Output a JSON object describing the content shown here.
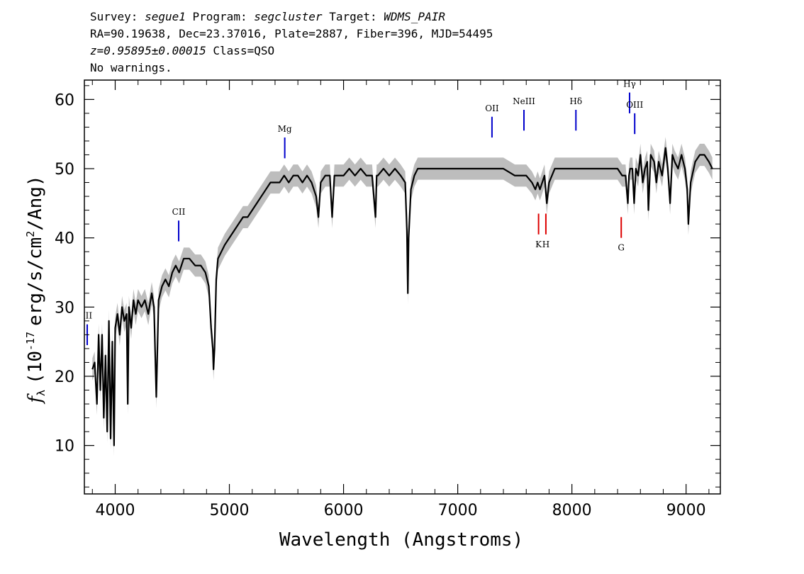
{
  "header": {
    "survey_label": "Survey:",
    "survey": "segue1",
    "program_label": "Program:",
    "program": "segcluster",
    "target_label": "Target:",
    "target": "WDMS_PAIR",
    "line2": "RA=90.19638, Dec=23.37016, Plate=2887, Fiber=396, MJD=54495",
    "redshift": "z=0.95895±0.00015",
    "class": "Class=QSO",
    "warnings": "No warnings."
  },
  "colors": {
    "flux": "#000000",
    "error_band": "#bdbdbd",
    "emission_marker": "#0000cc",
    "absorption_marker": "#dd0000"
  },
  "chart_data": {
    "type": "line",
    "xlabel": "Wavelength (Angstroms)",
    "ylabel_parts": {
      "symbol": "f",
      "sub": "λ",
      "pre": "(10",
      "exp": "-17",
      "mid": "erg/s/cm",
      "exp2": "2",
      "post": "/Ang)"
    },
    "xlim": [
      3730,
      9300
    ],
    "ylim": [
      3,
      62.8
    ],
    "xticks": [
      4000,
      5000,
      6000,
      7000,
      8000,
      9000
    ],
    "yticks": [
      10,
      20,
      30,
      40,
      50,
      60
    ],
    "grid": false,
    "series": [
      {
        "x": [
          3800,
          3820,
          3840,
          3855,
          3870,
          3885,
          3900,
          3915,
          3930,
          3945,
          3960,
          3975,
          3990,
          4000,
          4020,
          4040,
          4060,
          4080,
          4100,
          4110,
          4120,
          4140,
          4160,
          4180,
          4200,
          4230,
          4260,
          4290,
          4320,
          4340,
          4360,
          4380,
          4410,
          4440,
          4470,
          4500,
          4530,
          4560,
          4600,
          4650,
          4700,
          4750,
          4790,
          4820,
          4840,
          4855,
          4861,
          4870,
          4885,
          4900,
          4930,
          4960,
          5000,
          5040,
          5080,
          5120,
          5160,
          5200,
          5240,
          5280,
          5320,
          5360,
          5400,
          5440,
          5480,
          5520,
          5560,
          5600,
          5640,
          5680,
          5720,
          5760,
          5780,
          5800,
          5840,
          5880,
          5900,
          5920,
          5960,
          6000,
          6050,
          6100,
          6150,
          6200,
          6250,
          6280,
          6290,
          6300,
          6350,
          6400,
          6450,
          6500,
          6540,
          6555,
          6563,
          6570,
          6590,
          6620,
          6650,
          6700,
          6800,
          6900,
          7000,
          7100,
          7200,
          7300,
          7400,
          7500,
          7600,
          7650,
          7680,
          7700,
          7720,
          7760,
          7780,
          7800,
          7850,
          7900,
          8000,
          8100,
          8200,
          8300,
          8400,
          8440,
          8470,
          8490,
          8500,
          8510,
          8530,
          8545,
          8560,
          8580,
          8600,
          8620,
          8640,
          8660,
          8670,
          8690,
          8720,
          8740,
          8760,
          8790,
          8820,
          8840,
          8860,
          8880,
          8900,
          8930,
          8960,
          8990,
          9010,
          9020,
          9040,
          9080,
          9120,
          9160,
          9200,
          9230
        ],
        "y": [
          21,
          22,
          16,
          26,
          18,
          26,
          14,
          23,
          12,
          28,
          11,
          25,
          10,
          27,
          29,
          26,
          30,
          28,
          29,
          16,
          30,
          27,
          31,
          29,
          31,
          30,
          31,
          29,
          32,
          30,
          17,
          31,
          33,
          34,
          33,
          35,
          36,
          35,
          37,
          37,
          36,
          36,
          35,
          33,
          27,
          24,
          21,
          24,
          34,
          37,
          38,
          39,
          40,
          41,
          42,
          43,
          43,
          44,
          45,
          46,
          47,
          48,
          48,
          48,
          49,
          48,
          49,
          49,
          48,
          49,
          48,
          46,
          43,
          48,
          49,
          49,
          43,
          49,
          49,
          49,
          50,
          49,
          50,
          49,
          49,
          43,
          49,
          49,
          50,
          49,
          50,
          49,
          48,
          41,
          32,
          40,
          47,
          49,
          50,
          50,
          50,
          50,
          50,
          50,
          50,
          50,
          50,
          49,
          49,
          48,
          47,
          48,
          47,
          49,
          45,
          48,
          50,
          50,
          50,
          50,
          50,
          50,
          50,
          49,
          49,
          45,
          49,
          50,
          50,
          45,
          50,
          49,
          52,
          48,
          50,
          51,
          44,
          52,
          51,
          48,
          51,
          49,
          53,
          50,
          45,
          52,
          51,
          50,
          52,
          50,
          47,
          42,
          48,
          51,
          52,
          52,
          51,
          50
        ]
      }
    ],
    "emission_lines": [
      {
        "label": "III",
        "x": 3755,
        "y_top": 27.5,
        "y_bottom": 24.5
      },
      {
        "label": "CII",
        "x": 4556,
        "y_top": 42.5,
        "y_bottom": 39.5
      },
      {
        "label": "Mg",
        "x": 5485,
        "y_top": 54.5,
        "y_bottom": 51.5
      },
      {
        "label": "OII",
        "x": 7300,
        "y_top": 57.5,
        "y_bottom": 54.5
      },
      {
        "label": "NeIII",
        "x": 7580,
        "y_top": 58.5,
        "y_bottom": 55.5
      },
      {
        "label": "Hδ",
        "x": 8035,
        "y_top": 58.5,
        "y_bottom": 55.5
      },
      {
        "label": "Hγ",
        "x": 8505,
        "y_top": 61,
        "y_bottom": 58
      },
      {
        "label": "OIII",
        "x": 8550,
        "y_top": 58,
        "y_bottom": 55
      }
    ],
    "absorption_lines": [
      {
        "label": "K",
        "x": 7708,
        "y_top": 43.5,
        "y_bottom": 40.5
      },
      {
        "label": "H",
        "x": 7772,
        "y_top": 43.5,
        "y_bottom": 40.5
      },
      {
        "label": "G",
        "x": 8432,
        "y_top": 43,
        "y_bottom": 40
      }
    ]
  }
}
